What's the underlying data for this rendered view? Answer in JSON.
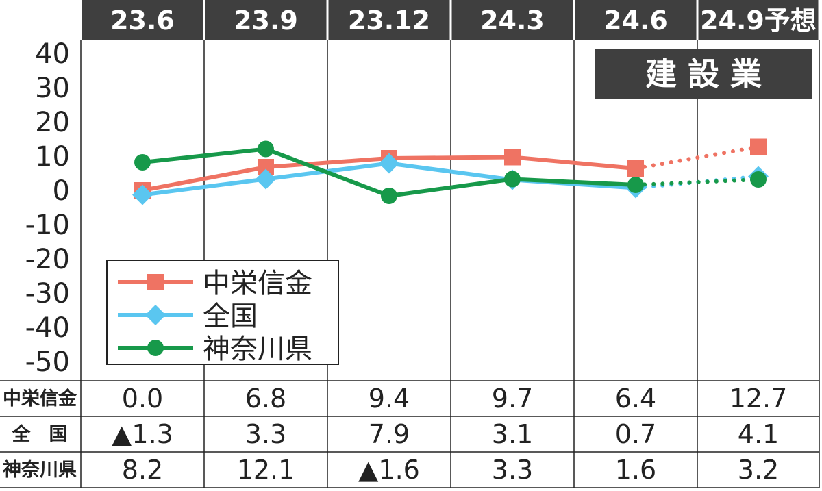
{
  "chart_data": {
    "type": "line",
    "categories": [
      "23.6",
      "23.9",
      "23.12",
      "24.3",
      "24.6",
      "24.9予想"
    ],
    "title": "建 設 業",
    "ylim": [
      -50,
      40
    ],
    "yticks": [
      40,
      30,
      20,
      10,
      0,
      -10,
      -20,
      -30,
      -40,
      -50
    ],
    "grid": "vertical",
    "legend_position": "bottom-left",
    "forecast_from_index": 4,
    "series": [
      {
        "name": "中栄信金",
        "table_label": "中栄信金",
        "values": [
          0.0,
          6.8,
          9.4,
          9.7,
          6.4,
          12.7
        ],
        "display": [
          "0.0",
          "6.8",
          "9.4",
          "9.7",
          "6.4",
          "12.7"
        ],
        "color": "#ef7363",
        "marker": "square"
      },
      {
        "name": "全国",
        "table_label": "全　国",
        "values": [
          -1.3,
          3.3,
          7.9,
          3.1,
          0.7,
          4.1
        ],
        "display": [
          "▲1.3",
          "3.3",
          "7.9",
          "3.1",
          "0.7",
          "4.1"
        ],
        "color": "#5ac6f0",
        "marker": "diamond"
      },
      {
        "name": "神奈川県",
        "table_label": "神奈川県",
        "values": [
          8.2,
          12.1,
          -1.6,
          3.3,
          1.6,
          3.2
        ],
        "display": [
          "8.2",
          "12.1",
          "▲1.6",
          "3.3",
          "1.6",
          "3.2"
        ],
        "color": "#17994a",
        "marker": "circle"
      }
    ]
  },
  "colors": {
    "header_bg": "#3f3f3f",
    "header_text": "#ffffff",
    "axis_text": "#222222",
    "grid": "#222222"
  }
}
